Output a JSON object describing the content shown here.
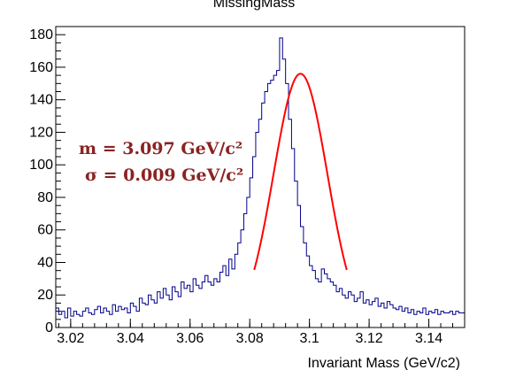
{
  "chart_data": {
    "type": "histogram",
    "title": "MissingMass",
    "xlabel": "Invariant Mass (GeV/c2)",
    "ylabel": "",
    "xlim": [
      3.015,
      3.152
    ],
    "ylim": [
      0,
      185
    ],
    "x_ticks": [
      3.02,
      3.04,
      3.06,
      3.08,
      3.1,
      3.12,
      3.14
    ],
    "x_tick_labels": [
      "3.02",
      "3.04",
      "3.06",
      "3.08",
      "3.1",
      "3.12",
      "3.14"
    ],
    "y_ticks": [
      0,
      20,
      40,
      60,
      80,
      100,
      120,
      140,
      160,
      180
    ],
    "y_tick_labels": [
      "0",
      "20",
      "40",
      "60",
      "80",
      "100",
      "120",
      "140",
      "160",
      "180"
    ],
    "grid": false,
    "series": [
      {
        "type": "histogram",
        "color": "#00008b",
        "bin_start": 3.015,
        "bin_width": 0.001,
        "values": [
          12,
          8,
          10,
          6,
          12,
          7,
          10,
          8,
          7,
          10,
          12,
          9,
          8,
          11,
          13,
          9,
          12,
          10,
          8,
          14,
          10,
          13,
          11,
          12,
          9,
          15,
          13,
          10,
          18,
          15,
          14,
          20,
          17,
          15,
          22,
          18,
          24,
          20,
          17,
          25,
          22,
          19,
          28,
          24,
          26,
          22,
          30,
          26,
          24,
          28,
          32,
          28,
          26,
          30,
          28,
          34,
          38,
          32,
          42,
          36,
          45,
          52,
          60,
          70,
          80,
          92,
          105,
          120,
          128,
          138,
          145,
          150,
          152,
          155,
          158,
          178,
          165,
          150,
          128,
          110,
          90,
          75,
          62,
          52,
          44,
          38,
          35,
          30,
          28,
          36,
          33,
          30,
          28,
          26,
          22,
          24,
          20,
          18,
          22,
          20,
          16,
          18,
          22,
          15,
          17,
          14,
          16,
          18,
          13,
          15,
          12,
          16,
          14,
          12,
          11,
          13,
          10,
          12,
          9,
          11,
          8,
          10,
          9,
          12,
          8,
          10,
          9,
          11,
          8,
          10,
          9,
          9,
          10,
          8,
          10,
          9,
          9
        ]
      },
      {
        "type": "gaussian_fit",
        "color": "#ff0000",
        "amplitude": 156,
        "mean": 3.097,
        "sigma": 0.009,
        "x_range": [
          3.0815,
          3.1125
        ]
      }
    ],
    "annotations": [
      "m = 3.097 GeV/c²",
      "σ = 0.009 GeV/c²"
    ]
  }
}
